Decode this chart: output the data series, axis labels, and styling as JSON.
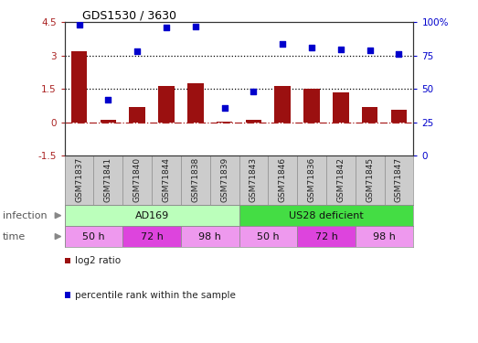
{
  "title": "GDS1530 / 3630",
  "samples": [
    "GSM71837",
    "GSM71841",
    "GSM71840",
    "GSM71844",
    "GSM71838",
    "GSM71839",
    "GSM71843",
    "GSM71846",
    "GSM71836",
    "GSM71842",
    "GSM71845",
    "GSM71847"
  ],
  "log2_ratio": [
    3.2,
    0.12,
    0.7,
    1.65,
    1.75,
    0.02,
    0.1,
    1.65,
    1.5,
    1.35,
    0.7,
    0.55
  ],
  "percentile_rank": [
    98,
    42,
    78,
    96,
    97,
    36,
    48,
    84,
    81,
    80,
    79,
    76
  ],
  "bar_color": "#9B1010",
  "dot_color": "#0000CC",
  "ylim_left": [
    -1.5,
    4.5
  ],
  "ylim_right": [
    0,
    100
  ],
  "yticks_left": [
    -1.5,
    0,
    1.5,
    3,
    4.5
  ],
  "yticks_right": [
    0,
    25,
    50,
    75,
    100
  ],
  "ytick_labels_right": [
    "0",
    "25",
    "50",
    "75",
    "100%"
  ],
  "hline_y": [
    0,
    1.5,
    3.0
  ],
  "hline_styles": [
    "dashdot",
    "dotted",
    "dotted"
  ],
  "hline_colors": [
    "#AA2222",
    "#000000",
    "#000000"
  ],
  "infection_labels": [
    {
      "text": "AD169",
      "start": 0,
      "end": 5,
      "color": "#BBFFBB"
    },
    {
      "text": "US28 deficient",
      "start": 6,
      "end": 11,
      "color": "#44DD44"
    }
  ],
  "time_groups": [
    {
      "text": "50 h",
      "start": 0,
      "end": 1,
      "color": "#EE99EE"
    },
    {
      "text": "72 h",
      "start": 2,
      "end": 3,
      "color": "#DD44DD"
    },
    {
      "text": "98 h",
      "start": 4,
      "end": 5,
      "color": "#EE99EE"
    },
    {
      "text": "50 h",
      "start": 6,
      "end": 7,
      "color": "#EE99EE"
    },
    {
      "text": "72 h",
      "start": 8,
      "end": 9,
      "color": "#DD44DD"
    },
    {
      "text": "98 h",
      "start": 10,
      "end": 11,
      "color": "#EE99EE"
    }
  ],
  "infection_row_label": "infection",
  "time_row_label": "time",
  "legend": [
    {
      "label": "log2 ratio",
      "color": "#9B1010"
    },
    {
      "label": "percentile rank within the sample",
      "color": "#0000CC"
    }
  ],
  "bg_color": "#FFFFFF",
  "sample_bg_color": "#CCCCCC",
  "border_color": "#888888"
}
